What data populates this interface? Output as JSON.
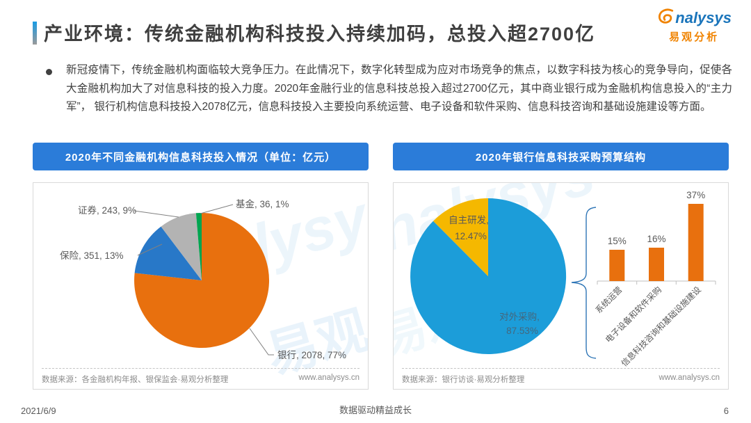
{
  "header": {
    "title": "产业环境：传统金融机构科技投入持续加码，总投入超2700亿",
    "logo": {
      "brand_first": "a",
      "brand_rest": "nalysys",
      "brand_cn": "易观分析"
    }
  },
  "summary": {
    "bullet_text": "新冠疫情下，传统金融机构面临较大竞争压力。在此情况下，数字化转型成为应对市场竞争的焦点，以数字科技为核心的竞争导向，促使各大金融机构加大了对信息科技的投入力度。2020年金融行业的信息科技总投入超过2700亿元，其中商业银行成为金融机构信息投入的“主力军”， 银行机构信息科技投入2078亿元，信息科技投入主要投向系统运营、电子设备和软件采购、信息科技咨询和基础设施建设等方面。"
  },
  "left_panel": {
    "banner": "2020年不同金融机构信息科技投入情况（单位：亿元）",
    "source": "数据来源：各金融机构年报、银保监会·易观分析整理",
    "website": "www.analysys.cn"
  },
  "right_panel": {
    "banner": "2020年银行信息科技采购预算结构",
    "source": "数据来源：银行访谈·易观分析整理",
    "website": "www.analysys.cn"
  },
  "watermark": {
    "brand": "analysys",
    "cn": "易观"
  },
  "chart_data": [
    {
      "type": "pie",
      "title": "2020年不同金融机构信息科技投入情况（单位：亿元）",
      "labels": [
        "银行",
        "保险",
        "证券",
        "基金"
      ],
      "values": [
        2078,
        351,
        243,
        36
      ],
      "percents": [
        "77%",
        "13%",
        "9%",
        "1%"
      ],
      "colors": [
        "#E8700E",
        "#2878C8",
        "#B3B3B3",
        "#00A550"
      ],
      "data_labels": [
        "银行, 2078, 77%",
        "保险, 351, 13%",
        "证券, 243, 9%",
        "基金, 36, 1%"
      ],
      "legend_position": "none"
    },
    {
      "type": "pie",
      "title": "2020年银行信息科技采购预算结构",
      "labels": [
        "对外采购",
        "自主研发"
      ],
      "values": [
        87.53,
        12.47
      ],
      "percents": [
        "87.53%",
        "12.47%"
      ],
      "colors": [
        "#1C9DD9",
        "#F5B800"
      ],
      "data_labels": [
        "自主研发,",
        "12.47%",
        "对外采购,",
        "87.53%"
      ],
      "legend_position": "none"
    },
    {
      "type": "bar",
      "title": "2020年银行信息科技采购预算结构",
      "categories": [
        "系统运营",
        "电子设备和软件采购",
        "信息科技咨询和基础设施建设"
      ],
      "values": [
        15,
        16,
        37
      ],
      "labels": [
        "15%",
        "16%",
        "37%"
      ],
      "bar_color": "#E8700E",
      "xlabel": "",
      "ylabel": "",
      "ylim": [
        0,
        40
      ],
      "grid": false
    }
  ],
  "footer": {
    "date": "2021/6/9",
    "slogan": "数据驱动精益成长",
    "page": "6"
  }
}
